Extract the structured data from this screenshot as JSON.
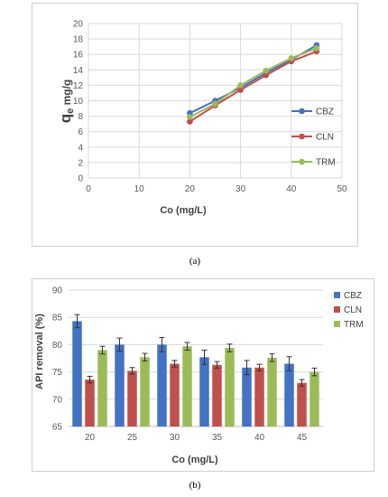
{
  "figure_labels": {
    "a": "(a)",
    "b": "(b)"
  },
  "colors": {
    "CBZ": "#4472c4",
    "CLN": "#c0504d",
    "TRM": "#9bbb59"
  },
  "chart_data": [
    {
      "id": "a",
      "type": "line",
      "xlabel": "Co (mg/L)",
      "ylabel_main": "q",
      "ylabel_sub": "e",
      "ylabel_rest": " mg/g",
      "xlim": [
        0,
        50
      ],
      "ylim": [
        0,
        20
      ],
      "xticks": [
        0,
        10,
        20,
        30,
        40,
        50
      ],
      "yticks": [
        0,
        2,
        4,
        6,
        8,
        10,
        12,
        14,
        16,
        18,
        20
      ],
      "grid": true,
      "legend": "right",
      "x": [
        20,
        25,
        30,
        35,
        40,
        45
      ],
      "series": [
        {
          "name": "CBZ",
          "values": [
            8.4,
            10.0,
            11.7,
            13.6,
            15.3,
            17.2
          ]
        },
        {
          "name": "CLN",
          "values": [
            7.3,
            9.4,
            11.4,
            13.3,
            15.1,
            16.4
          ]
        },
        {
          "name": "TRM",
          "values": [
            7.9,
            9.6,
            12.0,
            13.9,
            15.5,
            16.8
          ]
        }
      ]
    },
    {
      "id": "b",
      "type": "bar",
      "xlabel": "Co (mg/L)",
      "ylabel": "API removal (%)",
      "ylim": [
        65,
        90
      ],
      "yticks": [
        65,
        70,
        75,
        80,
        85,
        90
      ],
      "grid": true,
      "legend": "top-right",
      "categories": [
        "20",
        "25",
        "30",
        "35",
        "40",
        "45"
      ],
      "series": [
        {
          "name": "CBZ",
          "values": [
            84.3,
            80.0,
            80.0,
            77.7,
            75.8,
            76.5
          ],
          "errors": [
            1.2,
            1.2,
            1.3,
            1.3,
            1.3,
            1.3
          ]
        },
        {
          "name": "CLN",
          "values": [
            73.6,
            75.2,
            76.5,
            76.3,
            75.8,
            73.0
          ],
          "errors": [
            0.6,
            0.6,
            0.6,
            0.6,
            0.6,
            0.6
          ]
        },
        {
          "name": "TRM",
          "values": [
            79.0,
            77.7,
            79.7,
            79.4,
            77.6,
            75.0
          ],
          "errors": [
            0.7,
            0.7,
            0.7,
            0.7,
            0.7,
            0.7
          ]
        }
      ]
    }
  ]
}
